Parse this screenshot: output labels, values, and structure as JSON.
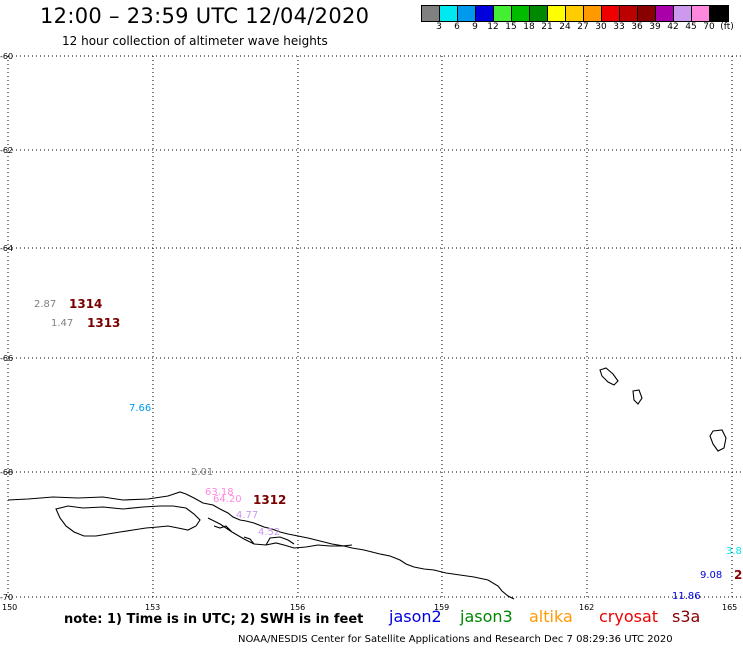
{
  "header": {
    "title": "12:00 – 23:59 UTC 12/04/2020",
    "subtitle": "12 hour collection of altimeter wave heights"
  },
  "legend": {
    "unit": "(ft)",
    "items": [
      {
        "label": "3",
        "color": "#808080"
      },
      {
        "label": "6",
        "color": "#00e8f0"
      },
      {
        "label": "9",
        "color": "#0099ee"
      },
      {
        "label": "12",
        "color": "#0000dd"
      },
      {
        "label": "15",
        "color": "#44ee33"
      },
      {
        "label": "18",
        "color": "#00bb00"
      },
      {
        "label": "21",
        "color": "#008800"
      },
      {
        "label": "24",
        "color": "#ffff00"
      },
      {
        "label": "27",
        "color": "#ffcc00"
      },
      {
        "label": "30",
        "color": "#ff9900"
      },
      {
        "label": "33",
        "color": "#ee0000"
      },
      {
        "label": "36",
        "color": "#bb0000"
      },
      {
        "label": "39",
        "color": "#880000"
      },
      {
        "label": "42",
        "color": "#aa00aa"
      },
      {
        "label": "45",
        "color": "#cc99ee"
      },
      {
        "label": "70",
        "color": "#ff88dd"
      },
      {
        "label": "",
        "color": "#000000"
      }
    ]
  },
  "axes": {
    "lat_labels": [
      "-60",
      "-62",
      "-64",
      "-66",
      "-68",
      "-70"
    ],
    "lon_labels": [
      "150",
      "153",
      "156",
      "159",
      "162",
      "165"
    ]
  },
  "observations": [
    {
      "text": "2.87",
      "color": "#808080"
    },
    {
      "text": "1.47",
      "color": "#808080"
    },
    {
      "text": "7.66",
      "color": "#0099ee"
    },
    {
      "text": "2.01",
      "color": "#808080"
    },
    {
      "text": "63.18",
      "color": "#ff88dd"
    },
    {
      "text": "64.20",
      "color": "#ff88dd"
    },
    {
      "text": "4.77",
      "color": "#cc99ee"
    },
    {
      "text": "4.52",
      "color": "#cc99ee"
    },
    {
      "text": "3.8",
      "color": "#00e8f0"
    },
    {
      "text": "9.08",
      "color": "#0000dd"
    },
    {
      "text": "11.86",
      "color": "#0000dd"
    },
    {
      "text": "2",
      "color": "#880000"
    }
  ],
  "passes": [
    "1314",
    "1313",
    "1312"
  ],
  "footer": {
    "note": "note: 1) Time is in UTC; 2) SWH is in feet",
    "satellites": [
      {
        "name": "jason2",
        "color": "#0000dd"
      },
      {
        "name": "jason3",
        "color": "#008800"
      },
      {
        "name": "altika",
        "color": "#ff9900"
      },
      {
        "name": "cryosat",
        "color": "#ee0000"
      },
      {
        "name": "s3a",
        "color": "#880000"
      }
    ],
    "credit": "NOAA/NESDIS Center for Satellite Applications and Research    Dec  7 08:29:36 UTC 2020"
  }
}
